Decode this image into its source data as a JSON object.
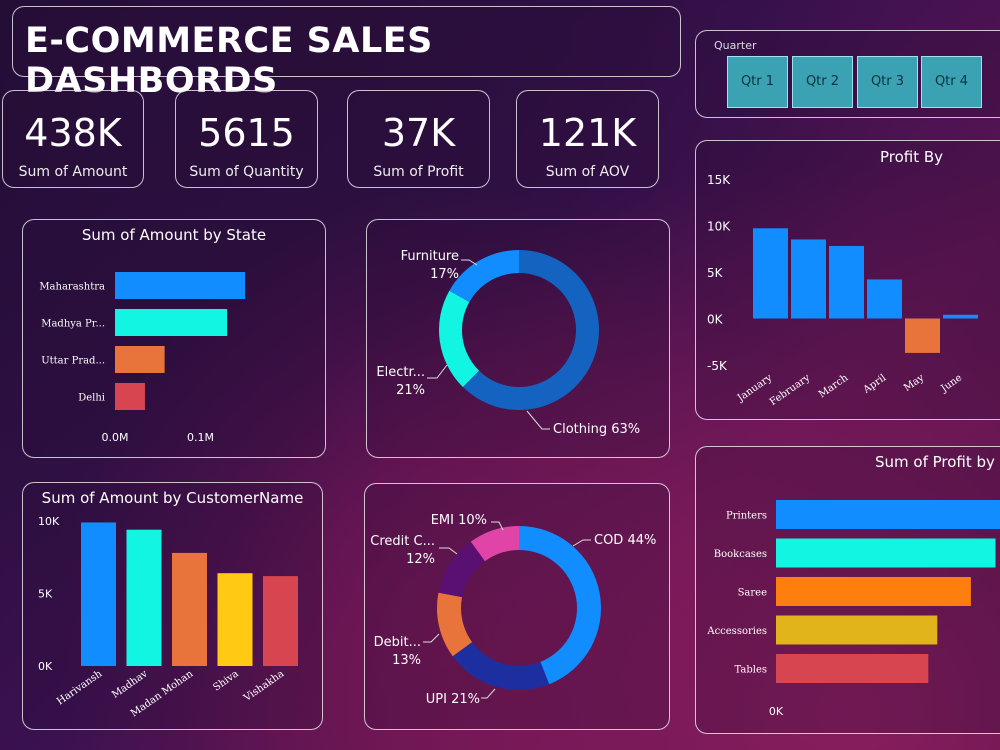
{
  "title": "E-COMMERCE SALES DASHBORDS",
  "kpis": [
    {
      "value": "438K",
      "label": "Sum of Amount"
    },
    {
      "value": "5615",
      "label": "Sum of Quantity"
    },
    {
      "value": "37K",
      "label": "Sum of Profit"
    },
    {
      "value": "121K",
      "label": "Sum of AOV"
    }
  ],
  "slicer": {
    "header": "Quarter",
    "options": [
      "Qtr 1",
      "Qtr 2",
      "Qtr 3",
      "Qtr 4"
    ]
  },
  "chart_data": [
    {
      "id": "state",
      "type": "bar",
      "orientation": "horizontal",
      "title": "Sum of Amount by State",
      "categories": [
        "Maharashtra",
        "Madhya Pr...",
        "Uttar Prad...",
        "Delhi"
      ],
      "values": [
        0.152,
        0.131,
        0.058,
        0.035
      ],
      "colors": [
        "#118DFF",
        "#12F5E3",
        "#E8743B",
        "#D64550"
      ],
      "xticks": [
        "0.0M",
        "0.1M"
      ],
      "xlim": [
        0,
        0.152
      ]
    },
    {
      "id": "category",
      "type": "pie",
      "donut": true,
      "slices": [
        {
          "label": "Clothing 63%",
          "value": 63,
          "color": "#1463C0"
        },
        {
          "label": "Electr...\n21%",
          "value": 21,
          "color": "#12F5E3"
        },
        {
          "label": "Furniture\n17%",
          "value": 17,
          "color": "#118DFF"
        }
      ]
    },
    {
      "id": "profit_month",
      "type": "bar",
      "title": "Profit By",
      "categories": [
        "January",
        "February",
        "March",
        "April",
        "May",
        "June"
      ],
      "values": [
        9700,
        8500,
        7800,
        4200,
        -3700,
        400
      ],
      "colors": [
        "#118DFF",
        "#118DFF",
        "#118DFF",
        "#118DFF",
        "#E8743B",
        "#118DFF"
      ],
      "yticks": [
        "15K",
        "10K",
        "5K",
        "0K",
        "-5K"
      ],
      "ylim": [
        -5000,
        15000
      ]
    },
    {
      "id": "customer",
      "type": "bar",
      "title": "Sum of Amount by CustomerName",
      "categories": [
        "Harivansh",
        "Madhav",
        "Madan Mohan",
        "Shiva",
        "Vishakha"
      ],
      "values": [
        9900,
        9400,
        7800,
        6400,
        6200
      ],
      "colors": [
        "#118DFF",
        "#12F5E3",
        "#E8743B",
        "#FFC914",
        "#D64550"
      ],
      "yticks": [
        "10K",
        "5K",
        "0K"
      ],
      "ylim": [
        0,
        10000
      ]
    },
    {
      "id": "payment",
      "type": "pie",
      "donut": true,
      "slices": [
        {
          "label": "COD 44%",
          "value": 44,
          "color": "#118DFF"
        },
        {
          "label": "UPI 21%",
          "value": 21,
          "color": "#1D2FA0"
        },
        {
          "label": "Debit...\n13%",
          "value": 13,
          "color": "#E8743B"
        },
        {
          "label": "Credit C...\n12%",
          "value": 12,
          "color": "#5A0F73"
        },
        {
          "label": "EMI 10%",
          "value": 10,
          "color": "#E044A7"
        }
      ]
    },
    {
      "id": "profit_subcat",
      "type": "bar",
      "orientation": "horizontal",
      "title": "Sum of Profit by",
      "categories": [
        "Printers",
        "Bookcases",
        "Saree",
        "Accessories",
        "Tables"
      ],
      "values": [
        1.0,
        0.98,
        0.87,
        0.72,
        0.68
      ],
      "colors": [
        "#118DFF",
        "#12F5E3",
        "#FF7F0E",
        "#E0B41A",
        "#D64550"
      ],
      "xticks": [
        "0K"
      ]
    }
  ]
}
